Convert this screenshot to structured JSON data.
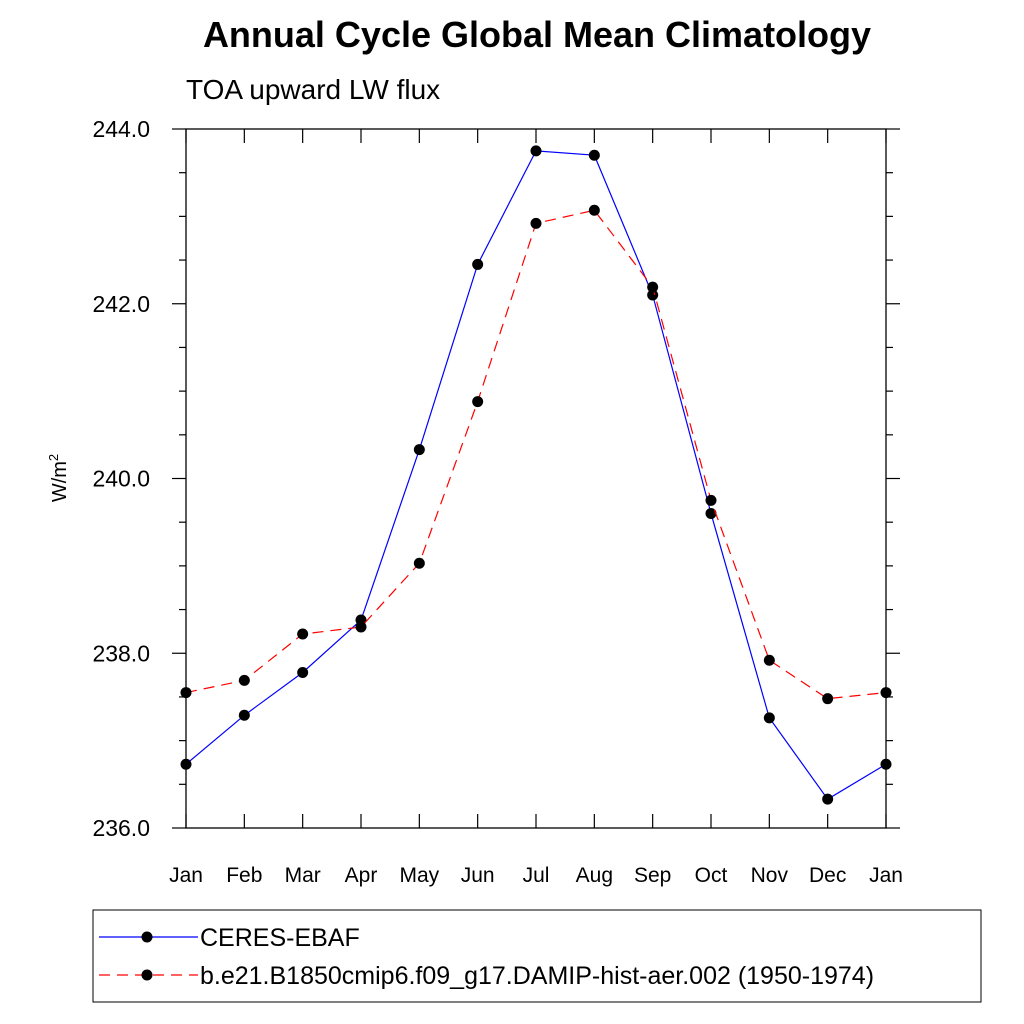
{
  "chart_data": {
    "type": "line",
    "title": "Annual Cycle Global Mean Climatology",
    "subtitle": "TOA upward LW flux",
    "ylabel_base": "W/m",
    "ylabel_sup": "2",
    "xlabel": "",
    "categories": [
      "Jan",
      "Feb",
      "Mar",
      "Apr",
      "May",
      "Jun",
      "Jul",
      "Aug",
      "Sep",
      "Oct",
      "Nov",
      "Dec",
      "Jan"
    ],
    "ylim": [
      236.0,
      244.0
    ],
    "yticks": [
      "236.0",
      "238.0",
      "240.0",
      "242.0",
      "244.0"
    ],
    "grid": false,
    "legend_position": "bottom",
    "series": [
      {
        "name": "CERES-EBAF",
        "color": "#0000ff",
        "dash": "solid",
        "marker": "filled-circle",
        "values": [
          236.73,
          237.29,
          237.78,
          238.38,
          240.33,
          242.45,
          243.75,
          243.7,
          242.1,
          239.6,
          237.26,
          236.33,
          236.73
        ]
      },
      {
        "name": "b.e21.B1850cmip6.f09_g17.DAMIP-hist-aer.002 (1950-1974)",
        "color": "#ff0000",
        "dash": "dashed",
        "marker": "filled-circle",
        "values": [
          237.55,
          237.69,
          238.22,
          238.3,
          239.03,
          240.88,
          242.92,
          243.07,
          242.19,
          239.75,
          237.92,
          237.48,
          237.55
        ]
      }
    ]
  }
}
